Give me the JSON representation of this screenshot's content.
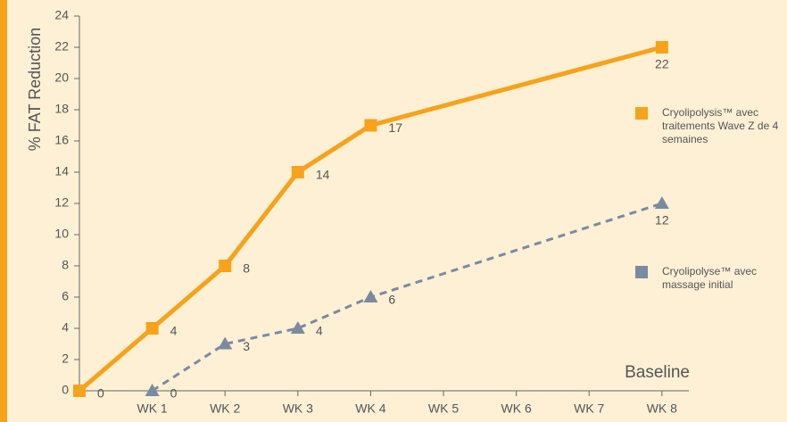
{
  "chart_data": {
    "type": "line",
    "y_label": "% FAT Reduction",
    "x_label": "Baseline",
    "xlim": [
      0,
      8.1
    ],
    "xticks": [
      {
        "value": 1,
        "label": "WK 1"
      },
      {
        "value": 2,
        "label": "WK 2"
      },
      {
        "value": 3,
        "label": "WK 3"
      },
      {
        "value": 4,
        "label": "WK 4"
      },
      {
        "value": 5,
        "label": "WK 5"
      },
      {
        "value": 6,
        "label": "WK 6"
      },
      {
        "value": 7,
        "label": "WK 7"
      },
      {
        "value": 8,
        "label": "WK 8"
      }
    ],
    "ylim": [
      0,
      24
    ],
    "yticks": [
      0,
      2,
      4,
      6,
      8,
      10,
      12,
      14,
      16,
      18,
      20,
      22,
      24
    ],
    "series": [
      {
        "name": "Cryolipolysis™ avec traitements Wave Z de 4 semaines",
        "color": "#f7a21b",
        "marker": "square",
        "dashed": false,
        "x": [
          0,
          1,
          2,
          3,
          4,
          8
        ],
        "values": [
          0,
          4,
          8,
          14,
          17,
          22
        ]
      },
      {
        "name": "Cryolipolyse™ avec massage initial",
        "color": "#7b8aa0",
        "marker": "triangle",
        "dashed": true,
        "x": [
          1,
          2,
          3,
          4,
          8
        ],
        "values": [
          0,
          3,
          4,
          6,
          12
        ]
      }
    ]
  }
}
